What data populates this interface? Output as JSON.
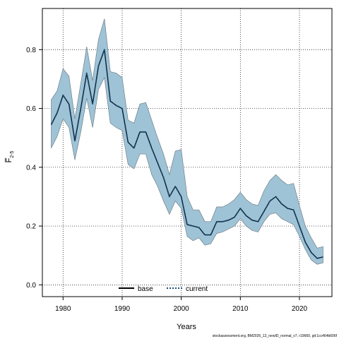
{
  "chart_data": {
    "type": "area",
    "xlabel": "Years",
    "ylabel": "F̅",
    "ylabel_subscript": "2-5",
    "xlim": [
      1976.5,
      2025.5
    ],
    "ylim": [
      -0.04,
      0.94
    ],
    "xticks": [
      1980,
      1990,
      2000,
      2010,
      2020
    ],
    "yticks": [
      0.0,
      0.2,
      0.4,
      0.6,
      0.8
    ],
    "ytick_labels": [
      "0.0",
      "0.2",
      "0.4",
      "0.6",
      "0.8"
    ],
    "grid": true,
    "legend_position": "bottom-center",
    "colors": {
      "band": "#9fc3d6",
      "band_edge": "#6f7f88",
      "current": "#1a4f78",
      "base": "#000000"
    },
    "x": [
      1978,
      1979,
      1980,
      1981,
      1982,
      1983,
      1984,
      1985,
      1986,
      1987,
      1988,
      1989,
      1990,
      1991,
      1992,
      1993,
      1994,
      1995,
      1996,
      1997,
      1998,
      1999,
      2000,
      2001,
      2002,
      2003,
      2004,
      2005,
      2006,
      2007,
      2008,
      2009,
      2010,
      2011,
      2012,
      2013,
      2014,
      2015,
      2016,
      2017,
      2018,
      2019,
      2020,
      2021,
      2022,
      2023,
      2024
    ],
    "series": [
      {
        "name": "base",
        "style": "solid",
        "values": [
          0.545,
          0.585,
          0.645,
          0.615,
          0.49,
          0.6,
          0.72,
          0.615,
          0.745,
          0.8,
          0.625,
          0.61,
          0.6,
          0.485,
          0.465,
          0.52,
          0.52,
          0.465,
          0.415,
          0.365,
          0.3,
          0.335,
          0.3,
          0.205,
          0.2,
          0.195,
          0.17,
          0.17,
          0.215,
          0.215,
          0.22,
          0.23,
          0.26,
          0.235,
          0.22,
          0.215,
          0.25,
          0.285,
          0.3,
          0.275,
          0.26,
          0.255,
          0.2,
          0.145,
          0.11,
          0.09,
          0.095
        ]
      },
      {
        "name": "current",
        "style": "dotted",
        "values": [
          0.545,
          0.585,
          0.645,
          0.615,
          0.49,
          0.6,
          0.72,
          0.615,
          0.745,
          0.8,
          0.625,
          0.61,
          0.6,
          0.485,
          0.465,
          0.52,
          0.52,
          0.465,
          0.415,
          0.365,
          0.3,
          0.335,
          0.3,
          0.205,
          0.2,
          0.195,
          0.17,
          0.17,
          0.215,
          0.215,
          0.22,
          0.23,
          0.26,
          0.235,
          0.22,
          0.215,
          0.25,
          0.285,
          0.3,
          0.275,
          0.26,
          0.255,
          0.2,
          0.145,
          0.11,
          0.09,
          0.095
        ]
      }
    ],
    "band": {
      "upper": [
        0.63,
        0.66,
        0.735,
        0.71,
        0.565,
        0.685,
        0.81,
        0.695,
        0.835,
        0.905,
        0.725,
        0.72,
        0.705,
        0.56,
        0.55,
        0.615,
        0.62,
        0.56,
        0.5,
        0.445,
        0.375,
        0.455,
        0.46,
        0.3,
        0.255,
        0.255,
        0.215,
        0.215,
        0.265,
        0.265,
        0.275,
        0.29,
        0.315,
        0.29,
        0.275,
        0.27,
        0.32,
        0.355,
        0.375,
        0.355,
        0.34,
        0.345,
        0.27,
        0.2,
        0.16,
        0.125,
        0.13
      ],
      "lower": [
        0.465,
        0.505,
        0.565,
        0.535,
        0.425,
        0.52,
        0.635,
        0.535,
        0.665,
        0.705,
        0.55,
        0.535,
        0.525,
        0.41,
        0.395,
        0.445,
        0.445,
        0.375,
        0.335,
        0.285,
        0.24,
        0.285,
        0.26,
        0.165,
        0.15,
        0.16,
        0.135,
        0.14,
        0.175,
        0.18,
        0.19,
        0.2,
        0.225,
        0.2,
        0.185,
        0.18,
        0.215,
        0.24,
        0.245,
        0.225,
        0.215,
        0.205,
        0.165,
        0.12,
        0.085,
        0.07,
        0.075
      ]
    },
    "footnote": "stockassessment.org, BM2026_12_newID_normal_v7, r19660, git:1cc464b606f"
  }
}
